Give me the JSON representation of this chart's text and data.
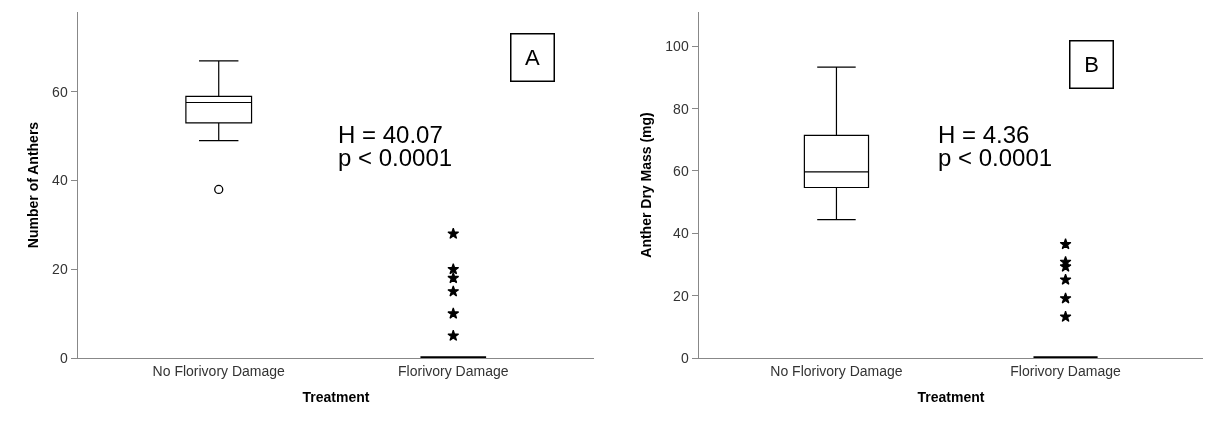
{
  "chart_data": [
    {
      "type": "box",
      "categories": [
        "No Florivory Damage",
        "Florivory Damage"
      ],
      "xlabel": "Treatment",
      "ylabel": "Number of Anthers",
      "color": "#000000",
      "ylim": [
        0,
        78
      ],
      "yticks": [
        0,
        20,
        40,
        60
      ],
      "grid": false,
      "boxes": [
        {
          "low": 49,
          "q1": 53,
          "median": 57.6,
          "q3": 59,
          "high": 67,
          "outliers": [
            38
          ]
        },
        {
          "low": 0,
          "q1": 0,
          "median": 0,
          "q3": 0,
          "high": 0
        }
      ],
      "series": [
        {
          "type": "scatter",
          "marker": "star",
          "color": "#000000",
          "x": [
            "Florivory Damage",
            "Florivory Damage",
            "Florivory Damage",
            "Florivory Damage",
            "Florivory Damage",
            "Florivory Damage"
          ],
          "values": [
            28,
            20,
            18,
            15,
            10,
            5
          ]
        }
      ],
      "annotations": [
        "A",
        "H = 40.07",
        "p < 0.0001"
      ]
    },
    {
      "type": "box",
      "categories": [
        "No Florivory Damage",
        "Florivory Damage"
      ],
      "xlabel": "Treatment",
      "ylabel": "Anther Dry Mass (mg)",
      "color": "#000000",
      "ylim": [
        0,
        111
      ],
      "yticks": [
        0,
        20,
        40,
        60,
        80,
        100
      ],
      "grid": false,
      "boxes": [
        {
          "low": 44.4,
          "q1": 54.7,
          "median": 59.7,
          "q3": 71.4,
          "high": 93.3
        },
        {
          "low": 0,
          "q1": 0,
          "median": 0,
          "q3": 0,
          "high": 0
        }
      ],
      "series": [
        {
          "type": "scatter",
          "marker": "star",
          "color": "#000000",
          "x": [
            "Florivory Damage",
            "Florivory Damage",
            "Florivory Damage",
            "Florivory Damage",
            "Florivory Damage",
            "Florivory Damage"
          ],
          "values": [
            36.5,
            30.8,
            29.3,
            25.1,
            19.1,
            13.2
          ]
        }
      ],
      "annotations": [
        "B",
        "H = 4.36",
        "p < 0.0001"
      ]
    }
  ]
}
